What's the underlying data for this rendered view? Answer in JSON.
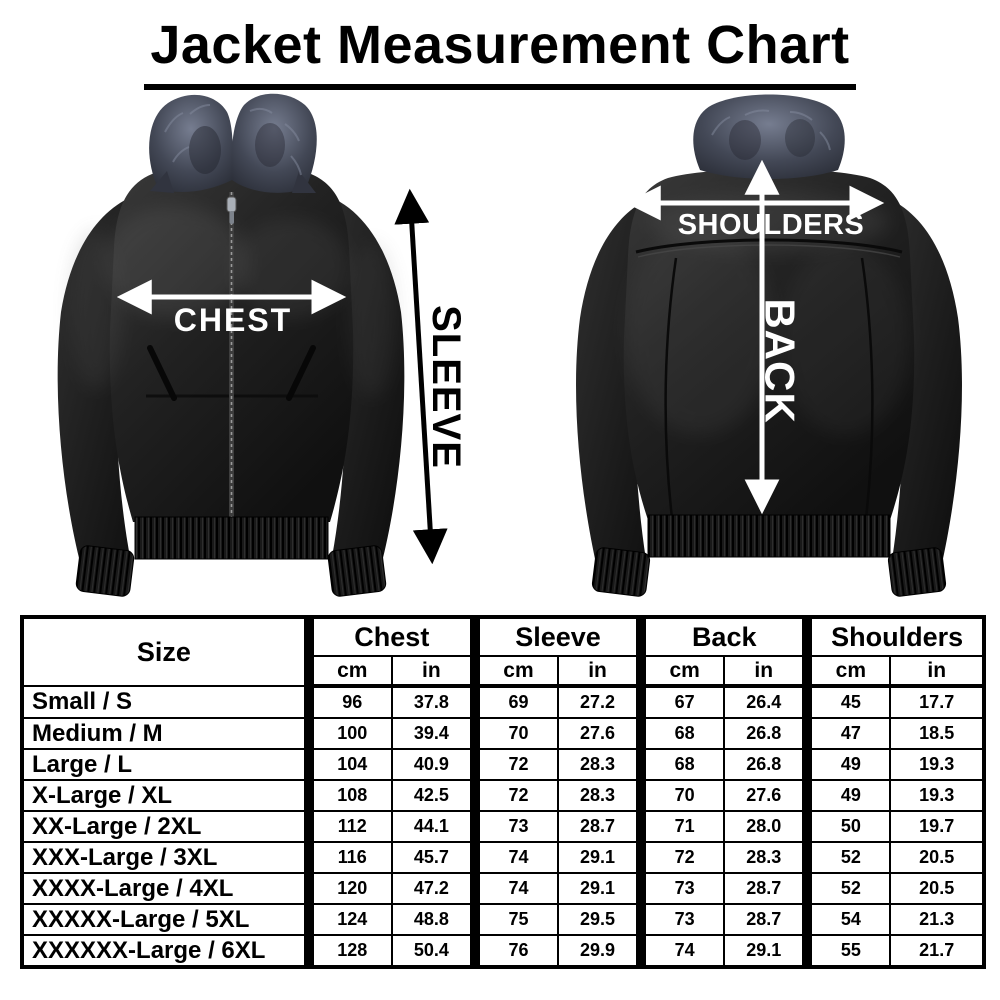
{
  "title": "Jacket Measurement Chart",
  "diagram": {
    "chest_label": "CHEST",
    "sleeve_label": "SLEEVE",
    "shoulders_label": "SHOULDERS",
    "back_label": "BACK"
  },
  "colors": {
    "background": "#ffffff",
    "arrow_light": "#ffffff",
    "arrow_dark": "#000000",
    "leather": "#1c1c1c",
    "fur_grey": "#4a5160",
    "table_line": "#000000"
  },
  "table": {
    "size_header": "Size",
    "unit_cm": "cm",
    "unit_in": "in",
    "groups": [
      {
        "label": "Chest"
      },
      {
        "label": "Sleeve"
      },
      {
        "label": "Back"
      },
      {
        "label": "Shoulders"
      }
    ],
    "rows": [
      {
        "size": "Small / S",
        "values": [
          "96",
          "37.8",
          "69",
          "27.2",
          "67",
          "26.4",
          "45",
          "17.7"
        ]
      },
      {
        "size": "Medium / M",
        "values": [
          "100",
          "39.4",
          "70",
          "27.6",
          "68",
          "26.8",
          "47",
          "18.5"
        ]
      },
      {
        "size": "Large / L",
        "values": [
          "104",
          "40.9",
          "72",
          "28.3",
          "68",
          "26.8",
          "49",
          "19.3"
        ]
      },
      {
        "size": "X-Large / XL",
        "values": [
          "108",
          "42.5",
          "72",
          "28.3",
          "70",
          "27.6",
          "49",
          "19.3"
        ]
      },
      {
        "size": "XX-Large / 2XL",
        "values": [
          "112",
          "44.1",
          "73",
          "28.7",
          "71",
          "28.0",
          "50",
          "19.7"
        ]
      },
      {
        "size": "XXX-Large / 3XL",
        "values": [
          "116",
          "45.7",
          "74",
          "29.1",
          "72",
          "28.3",
          "52",
          "20.5"
        ]
      },
      {
        "size": "XXXX-Large / 4XL",
        "values": [
          "120",
          "47.2",
          "74",
          "29.1",
          "73",
          "28.7",
          "52",
          "20.5"
        ]
      },
      {
        "size": "XXXXX-Large / 5XL",
        "values": [
          "124",
          "48.8",
          "75",
          "29.5",
          "73",
          "28.7",
          "54",
          "21.3"
        ]
      },
      {
        "size": "XXXXXX-Large / 6XL",
        "values": [
          "128",
          "50.4",
          "76",
          "29.9",
          "74",
          "29.1",
          "55",
          "21.7"
        ]
      }
    ]
  }
}
